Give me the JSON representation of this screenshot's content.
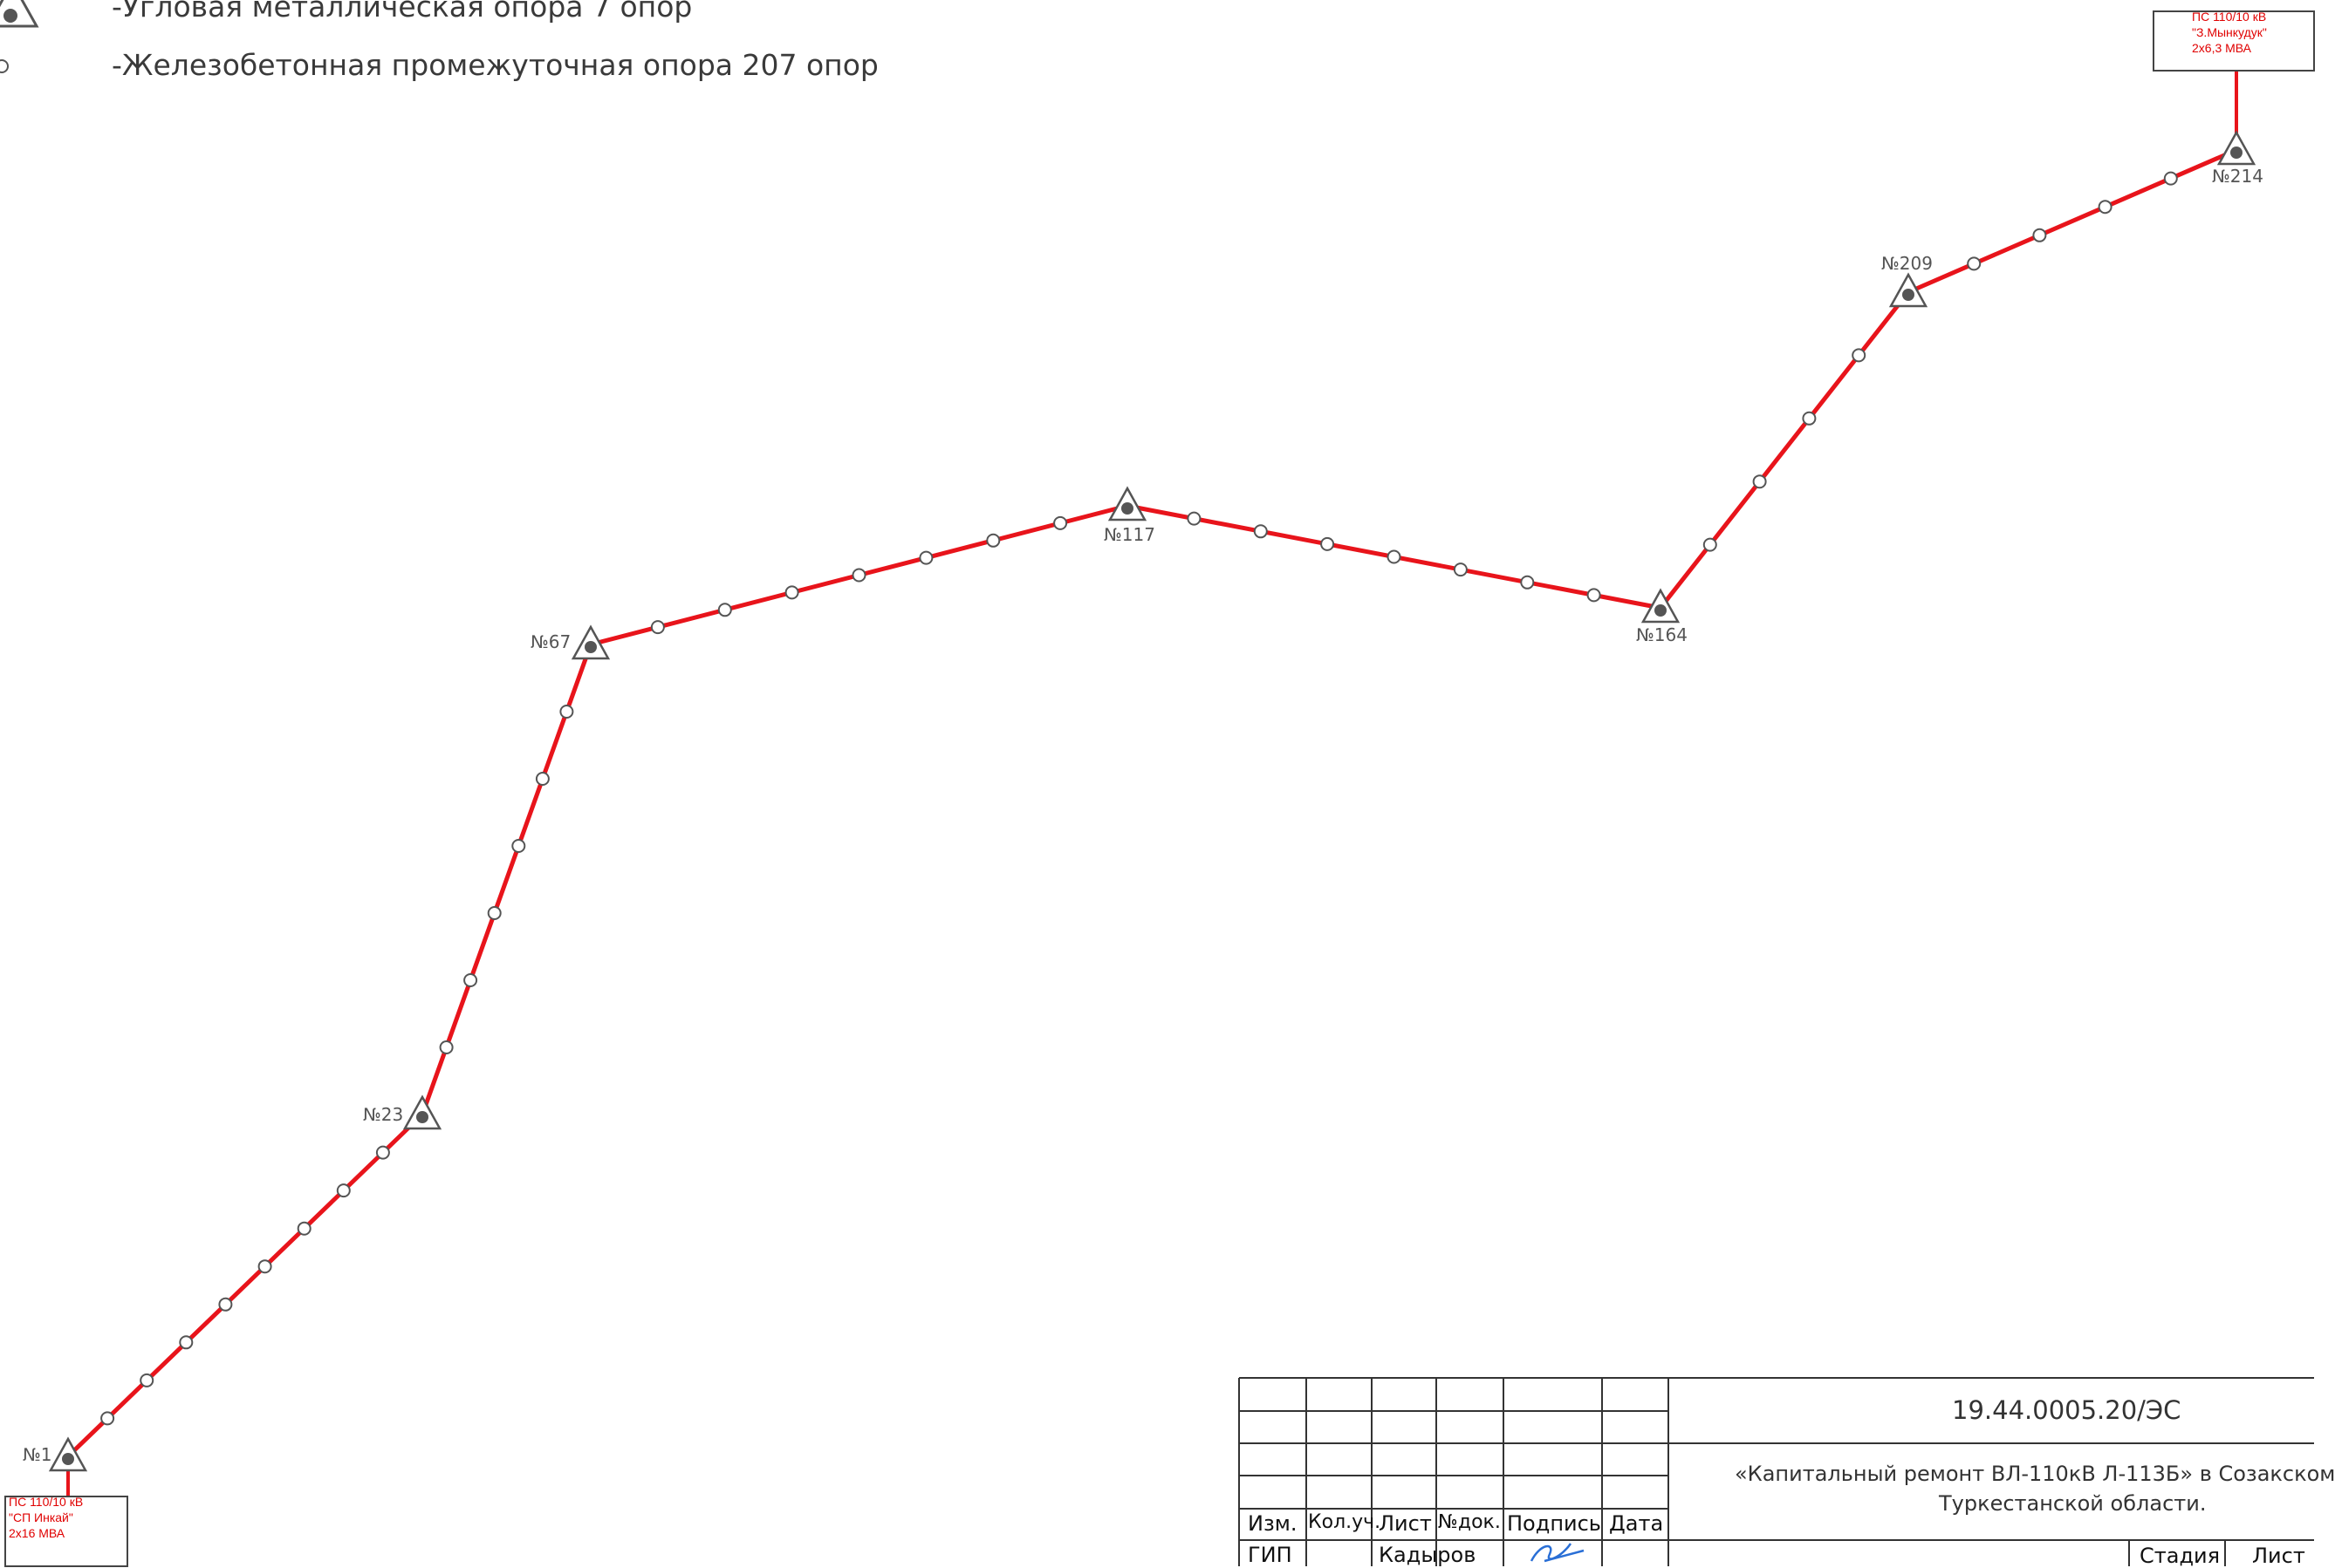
{
  "legend": {
    "angle_support": "-Угловая металлическая опора 7 опор",
    "intermediate_support": "-Железобетонная промежуточная опора 207 опор"
  },
  "substations": {
    "start": {
      "line1": "ПС 110/10 кВ",
      "line2": "\"СП Инкай\"",
      "line3": "2x16 МВА"
    },
    "end": {
      "line1": "ПС 110/10 кВ",
      "line2": "\"З.Мынкудук\"",
      "line3": "2x6,3 МВА"
    }
  },
  "angle_labels": {
    "p1": "№1",
    "p23": "№23",
    "p67": "№67",
    "p117": "№117",
    "p164": "№164",
    "p209": "№209",
    "p214": "№214"
  },
  "title_block": {
    "code": "19.44.0005.20/ЭС",
    "project_line1": "«Капитальный ремонт ВЛ-110кВ Л-113Б»  в Созакском",
    "project_line2": "Туркестанской области.",
    "headers": [
      "Изм.",
      "Кол.уч.",
      "Лист",
      "№док.",
      "Подпись",
      "Дата"
    ],
    "role": "ГИП",
    "name": "Кадыров",
    "stage": "Стадия",
    "sheet": "Лист"
  },
  "colors": {
    "line": "#e8141b",
    "marker": "#555555",
    "substation": "#e00000",
    "grid": "#333333"
  }
}
